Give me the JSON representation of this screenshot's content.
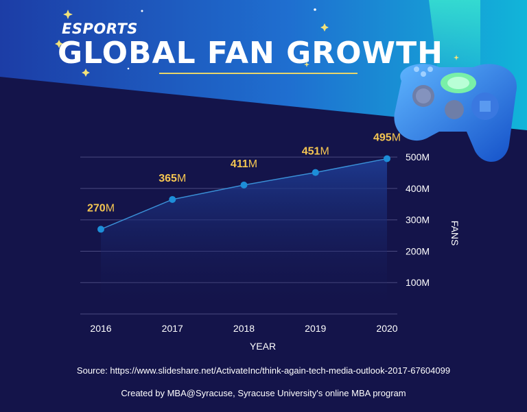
{
  "header": {
    "subtitle": "ESPORTS",
    "title": "GLOBAL FAN GROWTH"
  },
  "chart_data": {
    "type": "area",
    "x": [
      "2016",
      "2017",
      "2018",
      "2019",
      "2020"
    ],
    "values": [
      270,
      365,
      411,
      451,
      495
    ],
    "value_labels": [
      {
        "num": "270",
        "unit": "M"
      },
      {
        "num": "365",
        "unit": "M"
      },
      {
        "num": "411",
        "unit": "M"
      },
      {
        "num": "451",
        "unit": "M"
      },
      {
        "num": "495",
        "unit": "M"
      }
    ],
    "y_ticks": [
      100,
      200,
      300,
      400,
      500
    ],
    "y_tick_labels": [
      "100M",
      "200M",
      "300M",
      "400M",
      "500M"
    ],
    "ylim": [
      0,
      500
    ],
    "xlabel": "YEAR",
    "ylabel": "FANS",
    "y_axis_side": "right",
    "grid": true,
    "colors": {
      "line": "#3a8fd6",
      "point": "#1d8ed8",
      "label": "#f5c652",
      "grid": "#4a4a80",
      "area_top": "#1e3d96"
    }
  },
  "footer": {
    "source": "Source: https://www.slideshare.net/ActivateInc/think-again-tech-media-outlook-2017-67604099",
    "credit": "Created by MBA@Syracuse, Syracuse University's online MBA program"
  },
  "decor": {
    "illustration": "gamepad-controller",
    "sparkles": "star-icons"
  }
}
